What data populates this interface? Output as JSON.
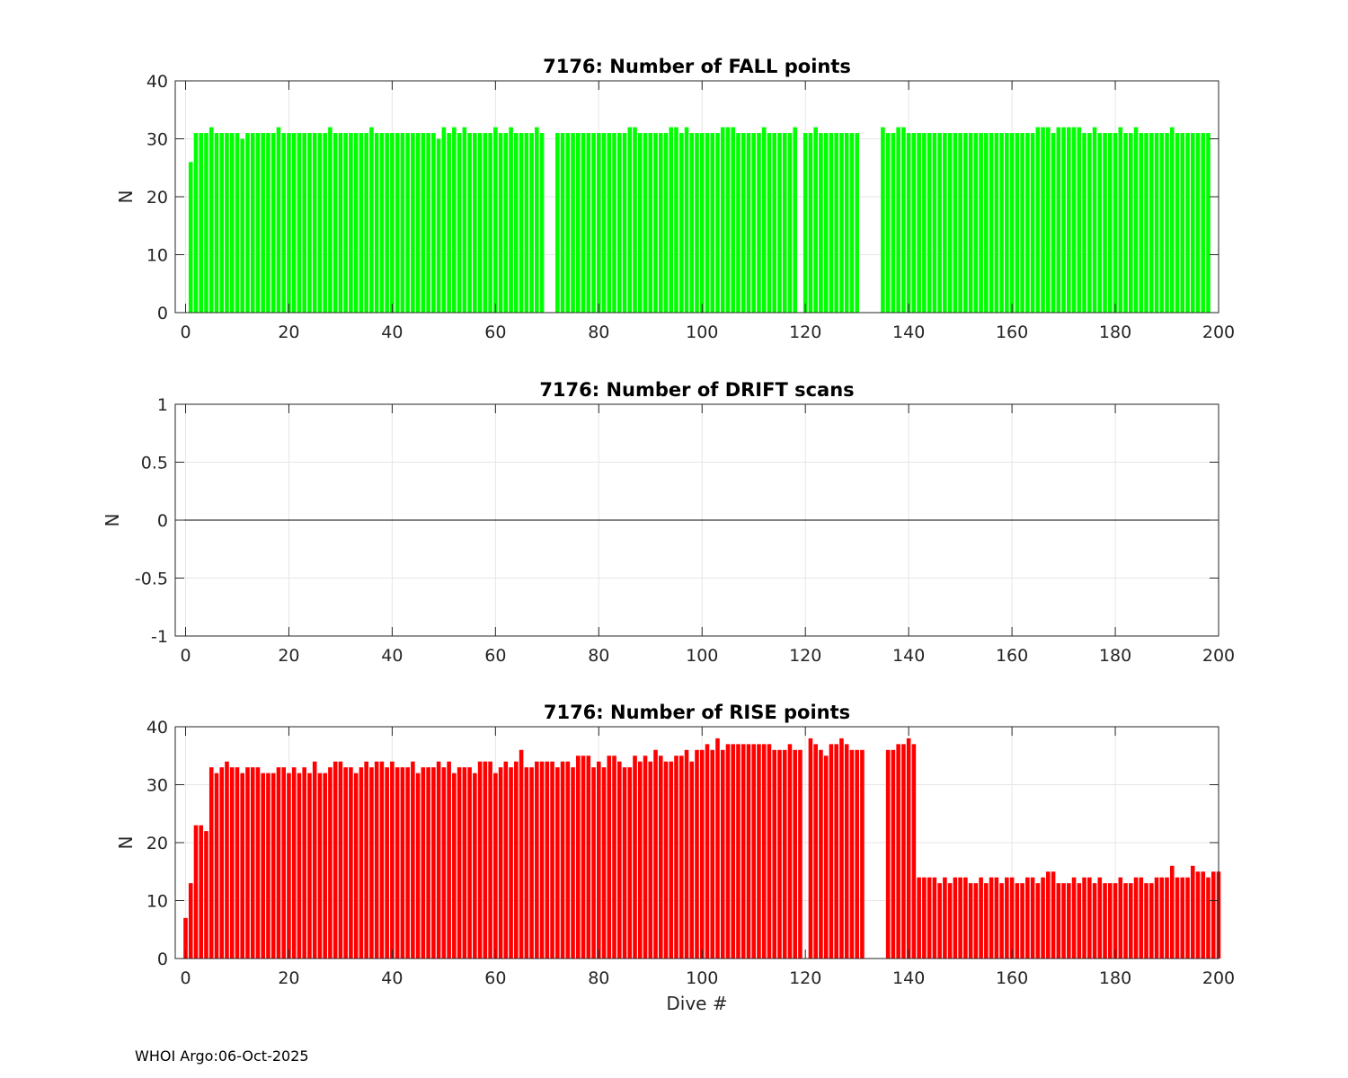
{
  "colors": {
    "fall": "#00ff00",
    "rise": "#ff0000",
    "grid": "#e6e6e6",
    "axis": "#262626"
  },
  "footer": "WHOI Argo:06-Oct-2025",
  "chart_data": [
    {
      "type": "bar",
      "title": "7176: Number of FALL points",
      "xlabel": "",
      "ylabel": "N",
      "xlim": [
        -2,
        200
      ],
      "ylim": [
        0,
        40
      ],
      "xticks": [
        0,
        20,
        40,
        60,
        80,
        100,
        120,
        140,
        160,
        180,
        200
      ],
      "yticks": [
        0,
        10,
        20,
        30,
        40
      ],
      "ytick_labels": [
        "0",
        "10",
        "20",
        "30",
        "40"
      ],
      "grid": true,
      "color": "fall",
      "x_start": 0,
      "values": [
        0,
        26,
        31,
        31,
        31,
        32,
        31,
        31,
        31,
        31,
        31,
        30,
        31,
        31,
        31,
        31,
        31,
        31,
        32,
        31,
        31,
        31,
        31,
        31,
        31,
        31,
        31,
        31,
        32,
        31,
        31,
        31,
        31,
        31,
        31,
        31,
        32,
        31,
        31,
        31,
        31,
        31,
        31,
        31,
        31,
        31,
        31,
        31,
        31,
        30,
        32,
        31,
        32,
        31,
        32,
        31,
        31,
        31,
        31,
        31,
        32,
        31,
        31,
        32,
        31,
        31,
        31,
        31,
        32,
        31,
        null,
        null,
        31,
        31,
        31,
        31,
        31,
        31,
        31,
        31,
        31,
        31,
        31,
        31,
        31,
        31,
        32,
        32,
        31,
        31,
        31,
        31,
        31,
        31,
        32,
        32,
        31,
        32,
        31,
        31,
        31,
        31,
        31,
        31,
        32,
        32,
        32,
        31,
        31,
        31,
        31,
        31,
        32,
        31,
        31,
        31,
        31,
        31,
        32,
        null,
        31,
        31,
        32,
        31,
        31,
        31,
        31,
        31,
        31,
        31,
        31,
        null,
        null,
        null,
        null,
        32,
        31,
        31,
        32,
        32,
        31,
        31,
        31,
        31,
        31,
        31,
        31,
        31,
        31,
        31,
        31,
        31,
        31,
        31,
        31,
        31,
        31,
        31,
        31,
        31,
        31,
        31,
        31,
        31,
        31,
        32,
        32,
        32,
        31,
        32,
        32,
        32,
        32,
        32,
        31,
        31,
        32,
        31,
        31,
        31,
        31,
        32,
        31,
        31,
        32,
        31,
        31,
        31,
        31,
        31,
        31,
        32,
        31,
        31,
        31,
        31,
        31,
        31,
        31
      ]
    },
    {
      "type": "bar",
      "title": "7176: Number of DRIFT scans",
      "xlabel": "",
      "ylabel": "N",
      "xlim": [
        -2,
        200
      ],
      "ylim": [
        -1,
        1
      ],
      "xticks": [
        0,
        20,
        40,
        60,
        80,
        100,
        120,
        140,
        160,
        180,
        200
      ],
      "yticks": [
        -1,
        -0.5,
        0,
        0.5,
        1
      ],
      "ytick_labels": [
        "-1",
        "-0.5",
        "0",
        "0.5",
        "1"
      ],
      "grid": true,
      "zero_line": true,
      "color": "fall",
      "x_start": 0,
      "values": []
    },
    {
      "type": "bar",
      "title": "7176: Number of RISE points",
      "xlabel": "Dive #",
      "ylabel": "N",
      "xlim": [
        -2,
        200
      ],
      "ylim": [
        0,
        40
      ],
      "xticks": [
        0,
        20,
        40,
        60,
        80,
        100,
        120,
        140,
        160,
        180,
        200
      ],
      "yticks": [
        0,
        10,
        20,
        30,
        40
      ],
      "ytick_labels": [
        "0",
        "10",
        "20",
        "30",
        "40"
      ],
      "grid": true,
      "color": "rise",
      "x_start": 0,
      "values": [
        7,
        13,
        23,
        23,
        22,
        33,
        32,
        33,
        34,
        33,
        33,
        32,
        33,
        33,
        33,
        32,
        32,
        32,
        33,
        33,
        32,
        33,
        32,
        33,
        32,
        34,
        32,
        32,
        33,
        34,
        34,
        33,
        33,
        32,
        33,
        34,
        33,
        34,
        34,
        33,
        34,
        33,
        33,
        33,
        34,
        32,
        33,
        33,
        33,
        34,
        33,
        34,
        32,
        33,
        33,
        33,
        32,
        34,
        34,
        34,
        32,
        33,
        34,
        33,
        34,
        36,
        33,
        33,
        34,
        34,
        34,
        34,
        33,
        34,
        34,
        33,
        35,
        35,
        35,
        33,
        34,
        33,
        35,
        35,
        34,
        33,
        33,
        35,
        34,
        35,
        34,
        36,
        35,
        34,
        34,
        35,
        35,
        36,
        34,
        36,
        36,
        37,
        36,
        38,
        36,
        37,
        37,
        37,
        37,
        37,
        37,
        37,
        37,
        37,
        36,
        36,
        36,
        37,
        36,
        36,
        null,
        38,
        37,
        36,
        35,
        37,
        37,
        38,
        37,
        36,
        36,
        36,
        null,
        null,
        null,
        null,
        36,
        36,
        37,
        37,
        38,
        37,
        14,
        14,
        14,
        14,
        13,
        14,
        13,
        14,
        14,
        14,
        13,
        13,
        14,
        13,
        14,
        14,
        13,
        14,
        14,
        13,
        13,
        14,
        14,
        13,
        14,
        15,
        15,
        13,
        13,
        13,
        14,
        13,
        14,
        14,
        13,
        14,
        13,
        13,
        13,
        14,
        13,
        13,
        14,
        14,
        13,
        13,
        14,
        14,
        14,
        16,
        14,
        14,
        14,
        16,
        15,
        15,
        14,
        15,
        15
      ]
    }
  ]
}
